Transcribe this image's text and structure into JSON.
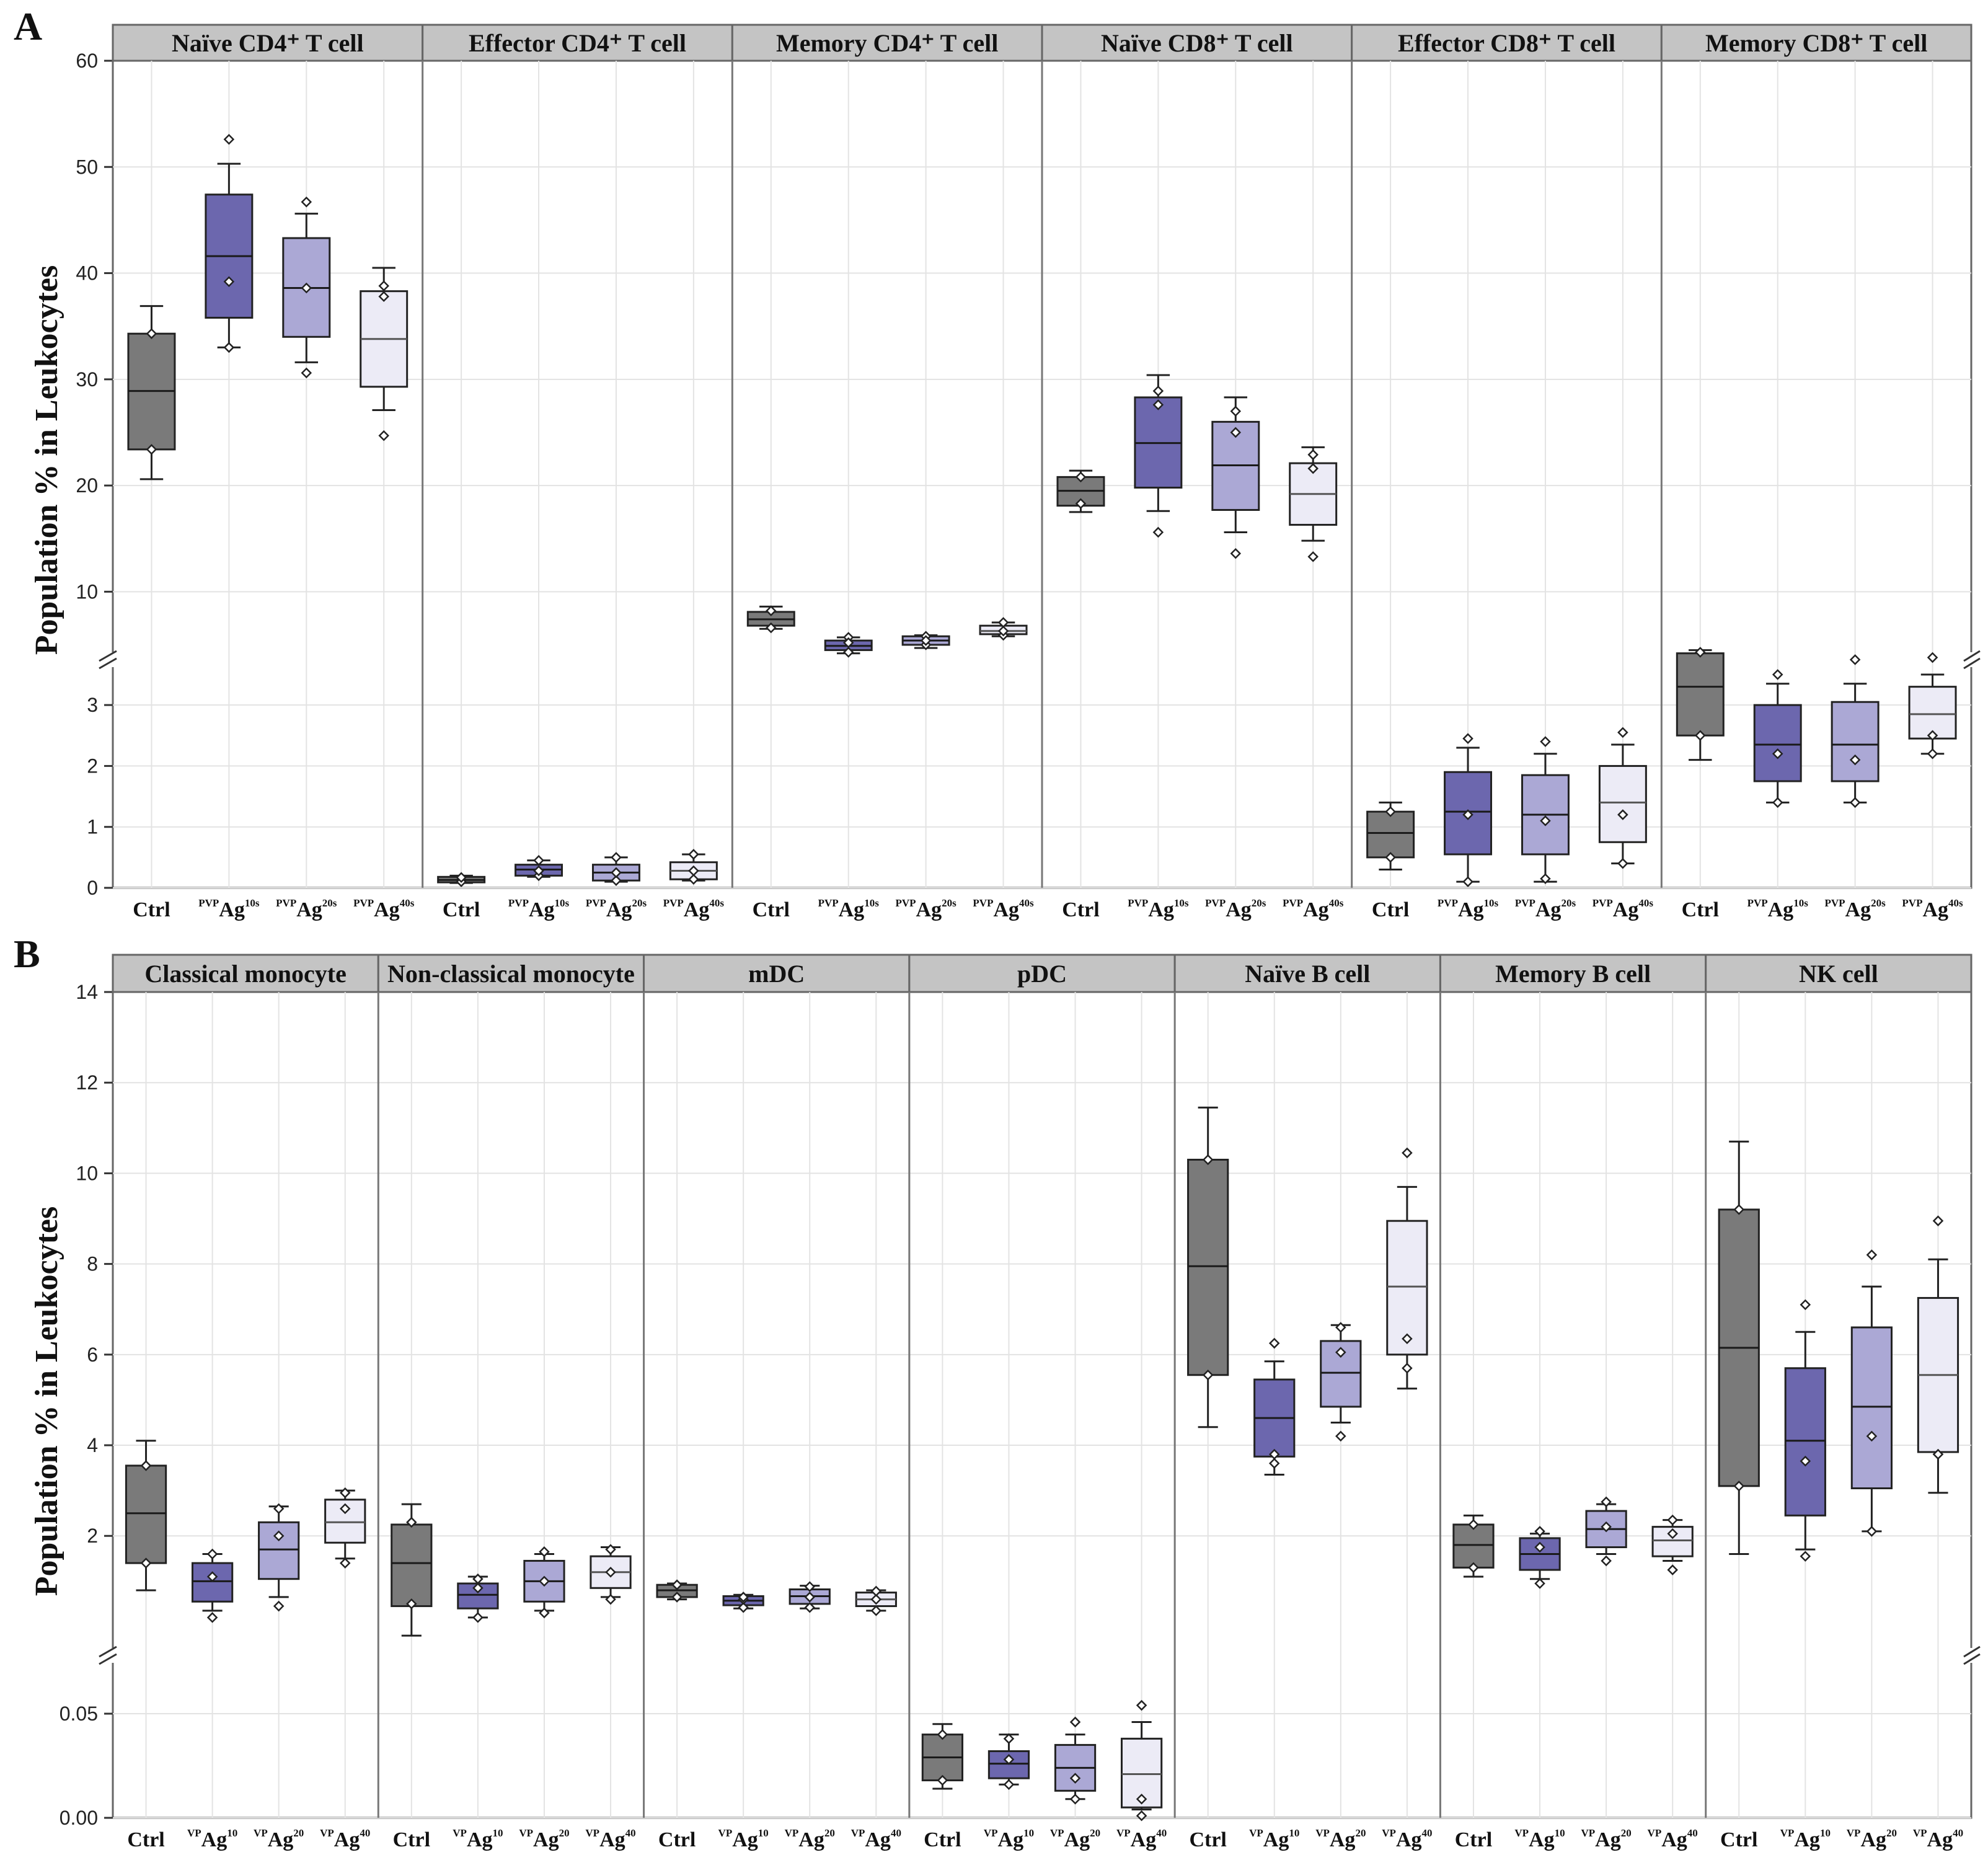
{
  "colors": {
    "Ctrl": "#7a7a7a",
    "PVP Ag10": "#6c67ae",
    "PVP Ag20": "#aba8d5",
    "PVP Ag40": "#ecebf6",
    "strip": "#c4c4c4",
    "grid": "#e3e3e3"
  },
  "chart_data": [
    {
      "type": "box",
      "panel": "A",
      "ylabel": "Population % in Leukocytes",
      "axis": {
        "lower": {
          "range": [
            0,
            3.5
          ],
          "ticks": [
            0,
            1,
            2,
            3
          ]
        },
        "upper": {
          "range": [
            5,
            60
          ],
          "ticks": [
            10,
            20,
            30,
            40,
            50,
            60
          ]
        },
        "broken": true
      },
      "categories": [
        {
          "main": "Ctrl",
          "pre": "",
          "sup": ""
        },
        {
          "main": "Ag",
          "pre": "PVP",
          "sup": "10s"
        },
        {
          "main": "Ag",
          "pre": "PVP",
          "sup": "20s"
        },
        {
          "main": "Ag",
          "pre": "PVP",
          "sup": "40s"
        }
      ],
      "series_names": [
        "Ctrl",
        "PVP Ag10",
        "PVP Ag20",
        "PVP Ag40"
      ],
      "facets": [
        {
          "title": "Naïve CD4⁺ T  cell",
          "groups": [
            {
              "whisker": [
                20.6,
                36.9
              ],
              "q1": 23.4,
              "median": 28.9,
              "q3": 34.3,
              "points": [
                23.4,
                34.3
              ]
            },
            {
              "whisker": [
                33.0,
                50.3
              ],
              "q1": 35.8,
              "median": 41.6,
              "q3": 47.4,
              "points": [
                39.2,
                52.6,
                33.0
              ]
            },
            {
              "whisker": [
                31.6,
                45.6
              ],
              "q1": 34.0,
              "median": 38.6,
              "q3": 43.3,
              "points": [
                38.6,
                46.7,
                30.6
              ]
            },
            {
              "whisker": [
                27.1,
                40.5
              ],
              "q1": 29.3,
              "median": 33.8,
              "q3": 38.3,
              "points": [
                24.7,
                37.8,
                38.8
              ]
            }
          ]
        },
        {
          "title": "Effector CD4⁺ T  cell",
          "groups": [
            {
              "whisker": [
                0.08,
                0.2
              ],
              "q1": 0.09,
              "median": 0.13,
              "q3": 0.18,
              "points": [
                0.1,
                0.17
              ]
            },
            {
              "whisker": [
                0.18,
                0.45
              ],
              "q1": 0.2,
              "median": 0.3,
              "q3": 0.38,
              "points": [
                0.2,
                0.45,
                0.28
              ]
            },
            {
              "whisker": [
                0.1,
                0.5
              ],
              "q1": 0.12,
              "median": 0.25,
              "q3": 0.38,
              "points": [
                0.12,
                0.5,
                0.25
              ]
            },
            {
              "whisker": [
                0.12,
                0.55
              ],
              "q1": 0.14,
              "median": 0.28,
              "q3": 0.42,
              "points": [
                0.14,
                0.55,
                0.28
              ]
            }
          ]
        },
        {
          "title": "Memory CD4⁺ T  cell",
          "groups": [
            {
              "whisker": [
                6.5,
                8.6
              ],
              "q1": 6.8,
              "median": 7.4,
              "q3": 8.1,
              "points": [
                6.6,
                8.2
              ]
            },
            {
              "whisker": [
                4.2,
                5.7
              ],
              "q1": 4.5,
              "median": 4.9,
              "q3": 5.4,
              "points": [
                4.3,
                5.7,
                5.2
              ]
            },
            {
              "whisker": [
                4.7,
                5.9
              ],
              "q1": 5.0,
              "median": 5.4,
              "q3": 5.8,
              "points": [
                5.0,
                5.8,
                5.4
              ]
            },
            {
              "whisker": [
                5.8,
                7.1
              ],
              "q1": 6.0,
              "median": 6.3,
              "q3": 6.8,
              "points": [
                5.9,
                7.1,
                6.3
              ]
            }
          ]
        },
        {
          "title": "Naïve CD8⁺ T  cell",
          "groups": [
            {
              "whisker": [
                17.5,
                21.4
              ],
              "q1": 18.1,
              "median": 19.5,
              "q3": 20.8,
              "points": [
                18.3,
                20.8
              ]
            },
            {
              "whisker": [
                17.6,
                30.4
              ],
              "q1": 19.8,
              "median": 24.0,
              "q3": 28.3,
              "points": [
                15.6,
                27.6,
                28.9
              ]
            },
            {
              "whisker": [
                15.6,
                28.3
              ],
              "q1": 17.7,
              "median": 21.9,
              "q3": 26.0,
              "points": [
                13.6,
                25.0,
                27.0
              ]
            },
            {
              "whisker": [
                14.8,
                23.6
              ],
              "q1": 16.3,
              "median": 19.2,
              "q3": 22.1,
              "points": [
                13.3,
                21.6,
                22.9
              ]
            }
          ]
        },
        {
          "title": "Effector CD8⁺ T  cell",
          "groups": [
            {
              "whisker": [
                0.3,
                1.4
              ],
              "q1": 0.5,
              "median": 0.9,
              "q3": 1.25,
              "points": [
                0.5,
                1.25
              ]
            },
            {
              "whisker": [
                0.1,
                2.3
              ],
              "q1": 0.55,
              "median": 1.25,
              "q3": 1.9,
              "points": [
                0.1,
                1.2,
                2.45
              ]
            },
            {
              "whisker": [
                0.1,
                2.2
              ],
              "q1": 0.55,
              "median": 1.2,
              "q3": 1.85,
              "points": [
                0.15,
                1.1,
                2.4
              ]
            },
            {
              "whisker": [
                0.4,
                2.35
              ],
              "q1": 0.75,
              "median": 1.4,
              "q3": 2.0,
              "points": [
                0.4,
                1.2,
                2.55
              ]
            }
          ]
        },
        {
          "title": "Memory CD8⁺ T  cell",
          "groups": [
            {
              "whisker": [
                2.1,
                4.5
              ],
              "q1": 2.5,
              "median": 3.3,
              "q3": 4.2,
              "points": [
                2.5,
                4.3
              ]
            },
            {
              "whisker": [
                1.4,
                3.35
              ],
              "q1": 1.75,
              "median": 2.35,
              "q3": 3.0,
              "points": [
                1.4,
                2.2,
                3.5
              ]
            },
            {
              "whisker": [
                1.4,
                3.35
              ],
              "q1": 1.75,
              "median": 2.35,
              "q3": 3.05,
              "points": [
                1.4,
                2.1,
                3.6
              ]
            },
            {
              "whisker": [
                2.2,
                3.5
              ],
              "q1": 2.45,
              "median": 2.85,
              "q3": 3.3,
              "points": [
                2.2,
                2.5,
                3.8
              ]
            }
          ]
        }
      ]
    },
    {
      "type": "box",
      "panel": "B",
      "ylabel": "Population % in Leukocytes",
      "axis": {
        "lower": {
          "range": [
            0,
            0.075
          ],
          "ticks": [
            0.0,
            0.05
          ],
          "tick_labels": [
            "0.00",
            "0.05"
          ]
        },
        "upper": {
          "range": [
            -0.5,
            14
          ],
          "ticks": [
            2,
            4,
            6,
            8,
            10,
            12,
            14
          ]
        },
        "broken": true
      },
      "categories": [
        {
          "main": "Ctrl",
          "pre": "",
          "sup": ""
        },
        {
          "main": "Ag",
          "pre": "VP",
          "sup": "10"
        },
        {
          "main": "Ag",
          "pre": "VP",
          "sup": "20"
        },
        {
          "main": "Ag",
          "pre": "VP",
          "sup": "40"
        }
      ],
      "series_names": [
        "Ctrl",
        "PVP Ag10",
        "PVP Ag20",
        "PVP Ag40"
      ],
      "facets": [
        {
          "title": "Classical monocyte",
          "scale": "upper",
          "groups": [
            {
              "whisker": [
                0.8,
                4.1
              ],
              "q1": 1.4,
              "median": 2.5,
              "q3": 3.55,
              "points": [
                1.4,
                3.55
              ]
            },
            {
              "whisker": [
                0.35,
                1.6
              ],
              "q1": 0.55,
              "median": 1.0,
              "q3": 1.4,
              "points": [
                0.2,
                1.1,
                1.6
              ]
            },
            {
              "whisker": [
                0.65,
                2.65
              ],
              "q1": 1.05,
              "median": 1.7,
              "q3": 2.3,
              "points": [
                0.45,
                2.0,
                2.6
              ]
            },
            {
              "whisker": [
                1.5,
                3.0
              ],
              "q1": 1.85,
              "median": 2.3,
              "q3": 2.8,
              "points": [
                1.4,
                2.6,
                2.95
              ]
            }
          ]
        },
        {
          "title": "Non-classical monocyte",
          "scale": "upper",
          "groups": [
            {
              "whisker": [
                -0.2,
                2.7
              ],
              "q1": 0.45,
              "median": 1.4,
              "q3": 2.25,
              "points": [
                0.5,
                2.3
              ]
            },
            {
              "whisker": [
                0.2,
                1.1
              ],
              "q1": 0.4,
              "median": 0.7,
              "q3": 0.95,
              "points": [
                0.2,
                0.85,
                1.05
              ]
            },
            {
              "whisker": [
                0.35,
                1.6
              ],
              "q1": 0.55,
              "median": 1.0,
              "q3": 1.45,
              "points": [
                0.3,
                1.0,
                1.65
              ]
            },
            {
              "whisker": [
                0.65,
                1.75
              ],
              "q1": 0.85,
              "median": 1.2,
              "q3": 1.55,
              "points": [
                0.6,
                1.2,
                1.7
              ]
            }
          ]
        },
        {
          "title": "mDC",
          "scale": "upper",
          "groups": [
            {
              "whisker": [
                0.6,
                0.95
              ],
              "q1": 0.65,
              "median": 0.8,
              "q3": 0.92,
              "points": [
                0.65,
                0.92
              ]
            },
            {
              "whisker": [
                0.4,
                0.7
              ],
              "q1": 0.47,
              "median": 0.57,
              "q3": 0.67,
              "points": [
                0.42,
                0.6,
                0.65
              ]
            },
            {
              "whisker": [
                0.4,
                0.9
              ],
              "q1": 0.5,
              "median": 0.67,
              "q3": 0.82,
              "points": [
                0.42,
                0.65,
                0.88
              ]
            },
            {
              "whisker": [
                0.35,
                0.8
              ],
              "q1": 0.45,
              "median": 0.6,
              "q3": 0.75,
              "points": [
                0.35,
                0.6,
                0.78
              ]
            }
          ]
        },
        {
          "title": "pDC",
          "scale": "lower",
          "groups": [
            {
              "whisker": [
                0.014,
                0.045
              ],
              "q1": 0.018,
              "median": 0.029,
              "q3": 0.04,
              "points": [
                0.018,
                0.04
              ]
            },
            {
              "whisker": [
                0.016,
                0.04
              ],
              "q1": 0.019,
              "median": 0.026,
              "q3": 0.032,
              "points": [
                0.016,
                0.028,
                0.038
              ]
            },
            {
              "whisker": [
                0.009,
                0.04
              ],
              "q1": 0.013,
              "median": 0.024,
              "q3": 0.035,
              "points": [
                0.009,
                0.019,
                0.046
              ]
            },
            {
              "whisker": [
                0.004,
                0.046
              ],
              "q1": 0.005,
              "median": 0.021,
              "q3": 0.038,
              "points": [
                0.001,
                0.009,
                0.054
              ]
            }
          ]
        },
        {
          "title": "Naïve B cell",
          "scale": "upper",
          "groups": [
            {
              "whisker": [
                4.4,
                11.45
              ],
              "q1": 5.55,
              "median": 7.95,
              "q3": 10.3,
              "points": [
                5.55,
                10.3
              ]
            },
            {
              "whisker": [
                3.35,
                5.85
              ],
              "q1": 3.75,
              "median": 4.6,
              "q3": 5.45,
              "points": [
                3.6,
                3.8,
                6.25
              ]
            },
            {
              "whisker": [
                4.5,
                6.65
              ],
              "q1": 4.85,
              "median": 5.6,
              "q3": 6.3,
              "points": [
                4.2,
                6.05,
                6.6
              ]
            },
            {
              "whisker": [
                5.25,
                9.7
              ],
              "q1": 6.0,
              "median": 7.5,
              "q3": 8.95,
              "points": [
                5.7,
                6.35,
                10.45
              ]
            }
          ]
        },
        {
          "title": "Memory B cell",
          "scale": "upper",
          "groups": [
            {
              "whisker": [
                1.1,
                2.45
              ],
              "q1": 1.3,
              "median": 1.8,
              "q3": 2.25,
              "points": [
                1.3,
                2.25
              ]
            },
            {
              "whisker": [
                1.05,
                2.05
              ],
              "q1": 1.25,
              "median": 1.6,
              "q3": 1.95,
              "points": [
                0.95,
                1.75,
                2.1
              ]
            },
            {
              "whisker": [
                1.6,
                2.7
              ],
              "q1": 1.75,
              "median": 2.15,
              "q3": 2.55,
              "points": [
                1.45,
                2.2,
                2.75
              ]
            },
            {
              "whisker": [
                1.45,
                2.35
              ],
              "q1": 1.55,
              "median": 1.9,
              "q3": 2.2,
              "points": [
                1.25,
                2.05,
                2.35
              ]
            }
          ]
        },
        {
          "title": "NK cell",
          "scale": "upper",
          "groups": [
            {
              "whisker": [
                1.6,
                10.7
              ],
              "q1": 3.1,
              "median": 6.15,
              "q3": 9.2,
              "points": [
                3.1,
                9.2
              ]
            },
            {
              "whisker": [
                1.7,
                6.5
              ],
              "q1": 2.45,
              "median": 4.1,
              "q3": 5.7,
              "points": [
                1.55,
                3.65,
                7.1
              ]
            },
            {
              "whisker": [
                2.1,
                7.5
              ],
              "q1": 3.05,
              "median": 4.85,
              "q3": 6.6,
              "points": [
                2.1,
                4.2,
                8.2
              ]
            },
            {
              "whisker": [
                2.95,
                8.1
              ],
              "q1": 3.85,
              "median": 5.55,
              "q3": 7.25,
              "points": [
                3.8,
                3.8,
                8.95
              ]
            }
          ]
        }
      ]
    }
  ]
}
